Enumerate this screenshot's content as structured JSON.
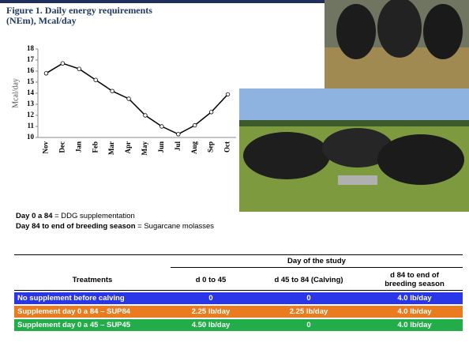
{
  "chart_data": {
    "type": "line",
    "title": "Figure 1. Daily energy requirements (NEm), Mcal/day",
    "y_label": "Mcal/day",
    "categories": [
      "Nov",
      "Dec",
      "Jan",
      "Feb",
      "Mar",
      "Apr",
      "May",
      "Jun",
      "Jul",
      "Aug",
      "Sep",
      "Oct"
    ],
    "values": [
      15.8,
      16.7,
      16.2,
      15.2,
      14.2,
      13.5,
      12.0,
      11.0,
      10.3,
      11.1,
      12.3,
      13.9
    ],
    "color": "#000000",
    "ylim": [
      10,
      18
    ],
    "yticks": [
      10,
      11,
      12,
      13,
      14,
      15,
      16,
      17,
      18
    ]
  },
  "notes": [
    {
      "label": "Day 0 a 84",
      "text": "= DDG supplementation"
    },
    {
      "label": "Day 84 to end of breeding season",
      "text": "= Sugarcane molasses"
    }
  ],
  "table": {
    "group_header": "Day of the study",
    "columns": [
      "Treatments",
      "d 0 to 45",
      "d 45 to 84 (Calving)",
      "d 84 to end of breeding season"
    ],
    "rows": [
      [
        "No supplement before calving",
        "0",
        "0",
        "4.0 lb/day"
      ],
      [
        "Supplement day 0 a 84 – SUP84",
        "2.25 lb/day",
        "2.25 lb/day",
        "4.0 lb/day"
      ],
      [
        "Supplement day 0 a 45 – SUP45",
        "4.50 lb/day",
        "0",
        "4.0 lb/day"
      ]
    ]
  }
}
